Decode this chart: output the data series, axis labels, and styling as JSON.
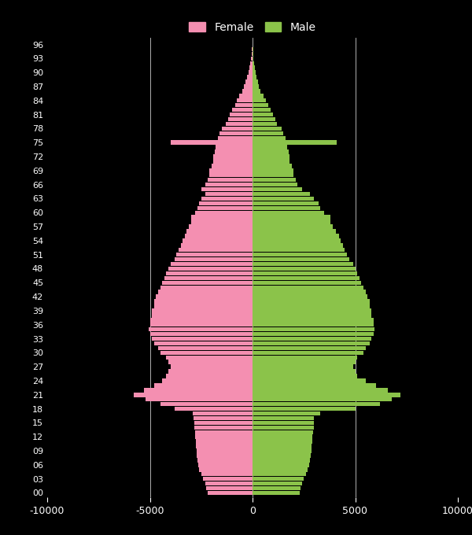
{
  "female_color": "#f48fb1",
  "male_color": "#8bc34a",
  "background_color": "#000000",
  "text_color": "#ffffff",
  "grid_color": "#ffffff",
  "xlim": [
    -10000,
    10000
  ],
  "xticks": [
    -10000,
    -5000,
    0,
    5000,
    10000
  ],
  "xtick_labels": [
    "-10000",
    "-5000",
    "0",
    "5000",
    "10000"
  ],
  "ages": [
    0,
    1,
    2,
    3,
    4,
    5,
    6,
    7,
    8,
    9,
    10,
    11,
    12,
    13,
    14,
    15,
    16,
    17,
    18,
    19,
    20,
    21,
    22,
    23,
    24,
    25,
    26,
    27,
    28,
    29,
    30,
    31,
    32,
    33,
    34,
    35,
    36,
    37,
    38,
    39,
    40,
    41,
    42,
    43,
    44,
    45,
    46,
    47,
    48,
    49,
    50,
    51,
    52,
    53,
    54,
    55,
    56,
    57,
    58,
    59,
    60,
    61,
    62,
    63,
    64,
    65,
    66,
    67,
    68,
    69,
    70,
    71,
    72,
    73,
    74,
    75,
    76,
    77,
    78,
    79,
    80,
    81,
    82,
    83,
    84,
    85,
    86,
    87,
    88,
    89,
    90,
    91,
    92,
    93,
    94,
    95,
    96
  ],
  "female": [
    2200,
    2250,
    2300,
    2400,
    2500,
    2600,
    2650,
    2700,
    2720,
    2730,
    2750,
    2760,
    2780,
    2800,
    2820,
    2840,
    2860,
    2900,
    3800,
    4500,
    5200,
    5800,
    5300,
    4800,
    4400,
    4200,
    4100,
    4000,
    4100,
    4200,
    4500,
    4600,
    4800,
    4900,
    5000,
    5050,
    5000,
    5000,
    4900,
    4900,
    4800,
    4800,
    4700,
    4600,
    4500,
    4400,
    4300,
    4200,
    4100,
    4000,
    3800,
    3700,
    3600,
    3500,
    3400,
    3300,
    3200,
    3100,
    3000,
    3000,
    2800,
    2700,
    2600,
    2500,
    2300,
    2500,
    2300,
    2200,
    2100,
    2100,
    2000,
    1900,
    1900,
    1850,
    1800,
    4000,
    1700,
    1600,
    1500,
    1300,
    1200,
    1100,
    1000,
    850,
    750,
    650,
    500,
    420,
    360,
    280,
    200,
    150,
    110,
    80,
    55,
    35,
    15
  ],
  "male": [
    2300,
    2350,
    2400,
    2500,
    2600,
    2700,
    2750,
    2800,
    2830,
    2860,
    2880,
    2900,
    2920,
    2950,
    2970,
    2990,
    3000,
    3300,
    5000,
    6200,
    6800,
    7200,
    6600,
    6000,
    5500,
    5100,
    5000,
    4900,
    5000,
    5100,
    5400,
    5500,
    5700,
    5800,
    5900,
    5950,
    5900,
    5900,
    5800,
    5800,
    5700,
    5700,
    5600,
    5500,
    5400,
    5300,
    5200,
    5100,
    5000,
    4900,
    4700,
    4600,
    4500,
    4400,
    4300,
    4200,
    4050,
    3900,
    3800,
    3800,
    3500,
    3300,
    3200,
    3000,
    2800,
    2400,
    2200,
    2100,
    2000,
    2000,
    1900,
    1800,
    1800,
    1750,
    1700,
    4100,
    1600,
    1500,
    1400,
    1200,
    1100,
    1000,
    900,
    750,
    650,
    550,
    400,
    320,
    260,
    190,
    140,
    100,
    70,
    50,
    38,
    22,
    8
  ]
}
